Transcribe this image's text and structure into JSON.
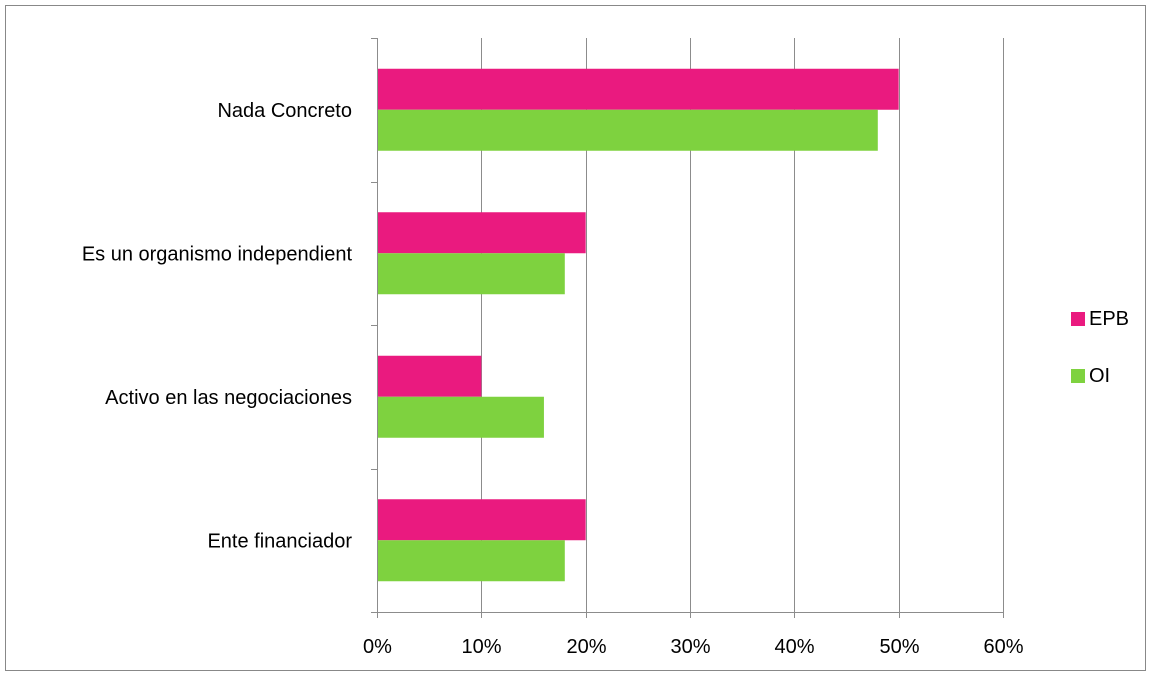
{
  "chart_data": {
    "type": "bar",
    "orientation": "horizontal",
    "title": "",
    "xlabel": "",
    "ylabel": "",
    "categories": [
      "Nada Concreto",
      "Es un organismo independient",
      "Activo en las negociaciones",
      "Ente financiador"
    ],
    "series": [
      {
        "name": "EPB",
        "color": "#ea1a7f",
        "values": [
          50,
          20,
          10,
          20
        ]
      },
      {
        "name": "OI",
        "color": "#7ed23f",
        "values": [
          48,
          18,
          16,
          18
        ]
      }
    ],
    "x_ticks": [
      "0%",
      "10%",
      "20%",
      "30%",
      "40%",
      "50%",
      "60%"
    ],
    "xlim": [
      0,
      60
    ],
    "grid": "vertical",
    "legend_position": "right"
  }
}
